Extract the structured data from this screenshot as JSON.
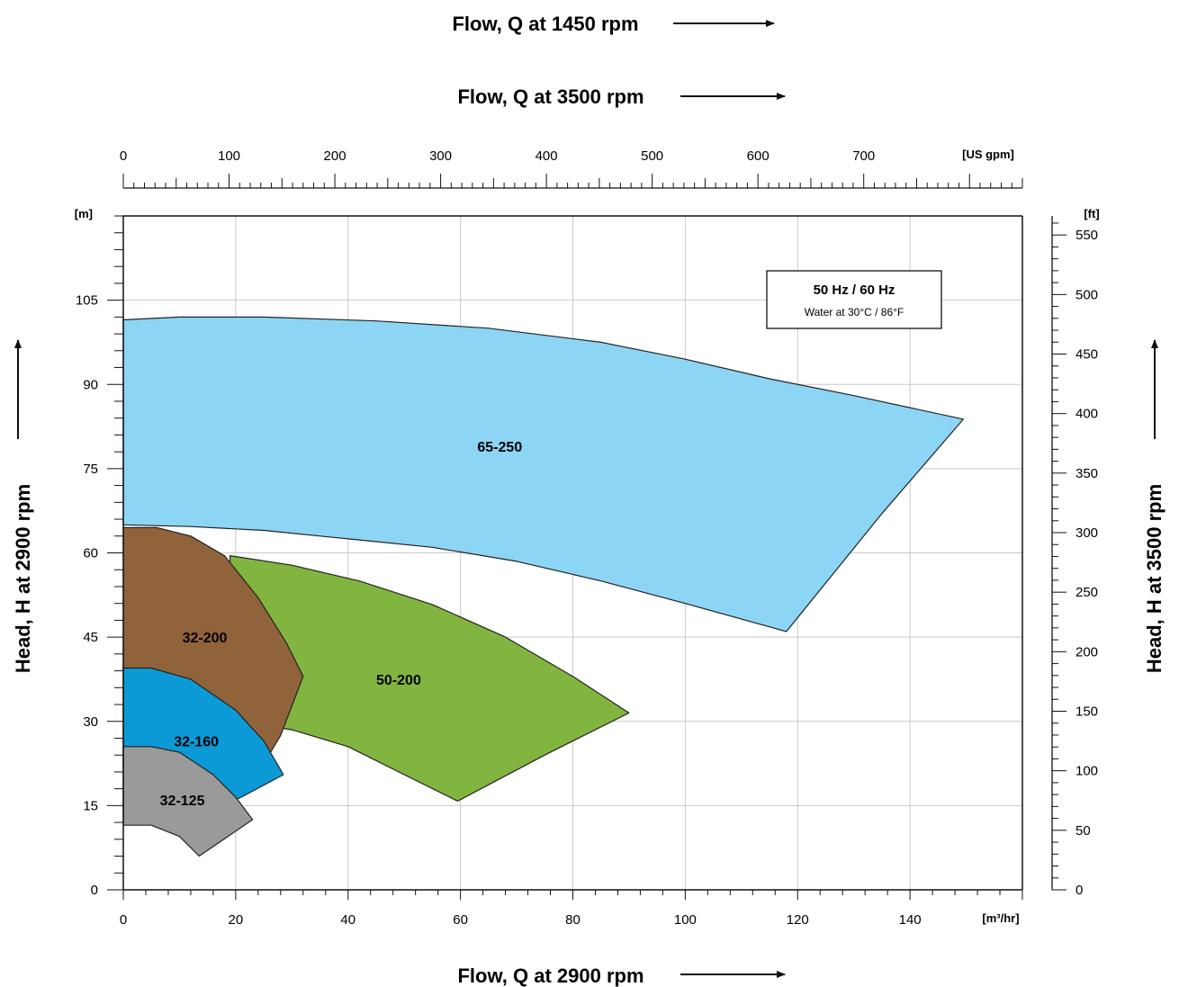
{
  "titles": {
    "flow_1450": "Flow, Q at 1450 rpm",
    "flow_3500": "Flow, Q at 3500 rpm",
    "flow_2900": "Flow, Q at 2900 rpm",
    "head_2900": "Head, H at 2900 rpm",
    "head_3500": "Head, H at 3500 rpm"
  },
  "legend": {
    "line1": "50 Hz / 60 Hz",
    "line2": "Water at 30°C / 86°F"
  },
  "colors": {
    "65-250": "#8dd5f4",
    "50-200": "#82b53f",
    "32-200": "#91633b",
    "32-160": "#0c9ad6",
    "32-125": "#9a9a9a",
    "grid": "#c8c8c8",
    "axis": "#111111"
  },
  "chart_data": {
    "type": "area",
    "title": "",
    "x_bottom": {
      "label": "[m³/hr]",
      "range": [
        0,
        160
      ],
      "major_ticks": [
        0,
        20,
        40,
        60,
        80,
        100,
        120,
        140
      ],
      "minor_step": 4
    },
    "x_top": {
      "label": "[US gpm]",
      "range": [
        0,
        850
      ],
      "major_ticks": [
        0,
        100,
        200,
        300,
        400,
        500,
        600,
        700
      ],
      "minor_step": 10
    },
    "y_left": {
      "label": "[m]",
      "range": [
        0,
        120
      ],
      "major_ticks": [
        0,
        15,
        30,
        45,
        60,
        75,
        90,
        105
      ],
      "minor_step": 3
    },
    "y_right": {
      "label": "[ft]",
      "range": [
        0,
        566
      ],
      "major_ticks": [
        0,
        50,
        100,
        150,
        200,
        250,
        300,
        350,
        400,
        450,
        500,
        550
      ],
      "minor_step": 10
    },
    "grid": true,
    "regions": [
      {
        "name": "65-250",
        "label_at": [
          67,
          79
        ],
        "points": [
          [
            0,
            101.5
          ],
          [
            10,
            102
          ],
          [
            25,
            102
          ],
          [
            45,
            101.3
          ],
          [
            65,
            100
          ],
          [
            85,
            97.5
          ],
          [
            100,
            94.5
          ],
          [
            115,
            91
          ],
          [
            130,
            88
          ],
          [
            149.5,
            83.8
          ],
          [
            135,
            67
          ],
          [
            118,
            46
          ],
          [
            100,
            51
          ],
          [
            85,
            55
          ],
          [
            70,
            58.5
          ],
          [
            55,
            61
          ],
          [
            40,
            62.5
          ],
          [
            25,
            64
          ],
          [
            12,
            64.7
          ],
          [
            0,
            65
          ]
        ]
      },
      {
        "name": "50-200",
        "label_at": [
          49,
          37.5
        ],
        "points": [
          [
            19,
            59.5
          ],
          [
            30,
            57.8
          ],
          [
            42,
            55
          ],
          [
            55,
            50.8
          ],
          [
            68,
            45
          ],
          [
            80,
            38
          ],
          [
            90,
            31.5
          ],
          [
            75,
            24
          ],
          [
            59.5,
            15.8
          ],
          [
            50,
            20.5
          ],
          [
            40,
            25.5
          ],
          [
            30,
            28.5
          ],
          [
            22,
            29.8
          ],
          [
            19,
            28
          ]
        ]
      },
      {
        "name": "32-200",
        "label_at": [
          14.5,
          45
        ],
        "points": [
          [
            0,
            64.5
          ],
          [
            6,
            64.5
          ],
          [
            12,
            63
          ],
          [
            18,
            59.5
          ],
          [
            24,
            52
          ],
          [
            29,
            44
          ],
          [
            32,
            38
          ],
          [
            28,
            27.5
          ],
          [
            25,
            22.5
          ],
          [
            15,
            22
          ],
          [
            0,
            22
          ]
        ]
      },
      {
        "name": "32-160",
        "label_at": [
          13,
          26.5
        ],
        "points": [
          [
            0,
            39.5
          ],
          [
            5,
            39.5
          ],
          [
            12,
            37.5
          ],
          [
            20,
            32
          ],
          [
            25,
            26.5
          ],
          [
            28.5,
            20.5
          ],
          [
            21,
            16.5
          ],
          [
            14,
            13.5
          ],
          [
            8,
            13
          ],
          [
            0,
            13
          ]
        ]
      },
      {
        "name": "32-125",
        "label_at": [
          10.5,
          16
        ],
        "points": [
          [
            0,
            25.5
          ],
          [
            5,
            25.5
          ],
          [
            10,
            24.5
          ],
          [
            16,
            20.5
          ],
          [
            20,
            16.5
          ],
          [
            23,
            12.5
          ],
          [
            13.5,
            6
          ],
          [
            10,
            9.5
          ],
          [
            5,
            11.5
          ],
          [
            0,
            11.5
          ]
        ]
      }
    ]
  }
}
